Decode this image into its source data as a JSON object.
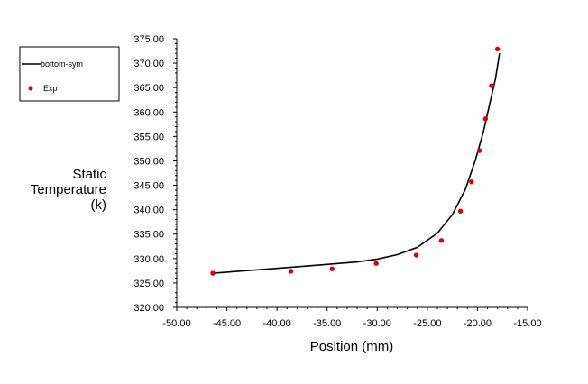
{
  "chart_data": {
    "type": "line",
    "xlabel": "Position (mm)",
    "ylabel_lines": [
      "Static",
      "Temperature",
      "(k)"
    ],
    "xlim": [
      -50.0,
      -15.0
    ],
    "ylim": [
      320.0,
      375.0
    ],
    "x_ticks": [
      "-50.00",
      "-45.00",
      "-40.00",
      "-35.00",
      "-30.00",
      "-25.00",
      "-20.00",
      "-15.00"
    ],
    "y_ticks": [
      "320.00",
      "325.00",
      "330.00",
      "335.00",
      "340.00",
      "345.00",
      "350.00",
      "355.00",
      "360.00",
      "365.00",
      "370.00",
      "375.00"
    ],
    "grid": false,
    "legend_position": "top-left",
    "series": [
      {
        "name": "bottom-sym",
        "style": "line",
        "color": "#000000",
        "x": [
          -46.4,
          -40.0,
          -35.0,
          -32.0,
          -30.0,
          -28.0,
          -26.0,
          -24.0,
          -22.5,
          -21.2,
          -20.2,
          -19.4,
          -18.8,
          -18.2,
          -17.8
        ],
        "y": [
          327.0,
          328.0,
          328.8,
          329.3,
          329.9,
          330.8,
          332.3,
          335.2,
          339.0,
          344.2,
          350.2,
          356.0,
          361.5,
          366.8,
          372.0
        ]
      },
      {
        "name": "Exp",
        "style": "scatter",
        "color": "#e00000",
        "x": [
          -46.4,
          -38.6,
          -34.5,
          -30.1,
          -26.1,
          -23.6,
          -21.7,
          -20.6,
          -19.8,
          -19.2,
          -18.6,
          -18.0
        ],
        "y": [
          327.0,
          327.4,
          327.9,
          329.0,
          330.7,
          333.7,
          339.7,
          345.7,
          352.1,
          358.6,
          365.4,
          372.9
        ]
      }
    ]
  }
}
